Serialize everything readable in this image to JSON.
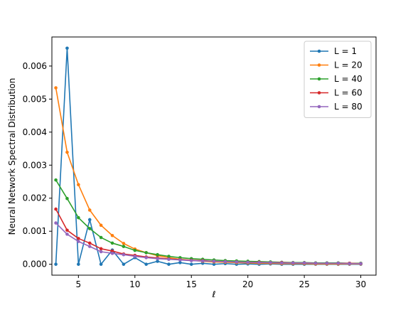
{
  "chart_data": {
    "type": "line",
    "title": "",
    "xlabel": "ℓ",
    "ylabel": "Neural Network Spectral Distribution",
    "xlim": [
      2.65,
      31.35
    ],
    "ylim": [
      -0.00033,
      0.00688
    ],
    "xticks": [
      5,
      10,
      15,
      20,
      25,
      30
    ],
    "xtick_labels": [
      "5",
      "10",
      "15",
      "20",
      "25",
      "30"
    ],
    "yticks": [
      0.0,
      0.001,
      0.002,
      0.003,
      0.004,
      0.005,
      0.006
    ],
    "ytick_labels": [
      "0.000",
      "0.001",
      "0.002",
      "0.003",
      "0.004",
      "0.005",
      "0.006"
    ],
    "grid": false,
    "legend": "top-right",
    "x": [
      3,
      4,
      5,
      6,
      7,
      8,
      9,
      10,
      11,
      12,
      13,
      14,
      15,
      16,
      17,
      18,
      19,
      20,
      21,
      22,
      23,
      24,
      25,
      26,
      27,
      28,
      29,
      30
    ],
    "series": [
      {
        "name": "L = 1",
        "color": "#1f77b4",
        "values": [
          0.0,
          0.00654,
          0.0,
          0.00135,
          0.0,
          0.00043,
          0.0,
          0.0002,
          0.0,
          9e-05,
          0.0,
          5e-05,
          0.0,
          3e-05,
          0.0,
          2e-05,
          0.0,
          1e-05,
          0.0,
          1e-05,
          0.0,
          0.0,
          0.0,
          0.0,
          0.0,
          0.0,
          0.0,
          0.0
        ]
      },
      {
        "name": "L = 20",
        "color": "#ff7f0e",
        "values": [
          0.00534,
          0.00339,
          0.00241,
          0.00164,
          0.00118,
          0.00087,
          0.00063,
          0.00046,
          0.00035,
          0.00026,
          0.0002,
          0.00015,
          0.00012,
          9e-05,
          7e-05,
          6e-05,
          5e-05,
          4e-05,
          3e-05,
          3e-05,
          2e-05,
          2e-05,
          2e-05,
          1e-05,
          1e-05,
          1e-05,
          1e-05,
          1e-05
        ]
      },
      {
        "name": "L = 40",
        "color": "#2ca02c",
        "values": [
          0.00255,
          0.00199,
          0.00141,
          0.00108,
          0.00081,
          0.00064,
          0.00054,
          0.00042,
          0.00035,
          0.00029,
          0.00024,
          0.0002,
          0.00017,
          0.00015,
          0.00013,
          0.00011,
          0.0001,
          9e-05,
          8e-05,
          7e-05,
          6e-05,
          5e-05,
          5e-05,
          4e-05,
          4e-05,
          4e-05,
          3e-05,
          3e-05
        ]
      },
      {
        "name": "L = 60",
        "color": "#d62728",
        "values": [
          0.00167,
          0.00103,
          0.00078,
          0.00064,
          0.00047,
          0.0004,
          0.00031,
          0.00027,
          0.00022,
          0.00019,
          0.00016,
          0.00014,
          0.00012,
          0.00011,
          9e-05,
          8e-05,
          7e-05,
          6e-05,
          6e-05,
          5e-05,
          5e-05,
          4e-05,
          4e-05,
          3e-05,
          3e-05,
          3e-05,
          3e-05,
          2e-05
        ]
      },
      {
        "name": "L = 80",
        "color": "#9467bd",
        "values": [
          0.00125,
          0.00091,
          0.00069,
          0.00054,
          0.00038,
          0.00033,
          0.00029,
          0.00024,
          0.0002,
          0.00017,
          0.00015,
          0.00013,
          0.00011,
          0.0001,
          9e-05,
          8e-05,
          7e-05,
          6e-05,
          5e-05,
          5e-05,
          4e-05,
          4e-05,
          4e-05,
          3e-05,
          3e-05,
          3e-05,
          2e-05,
          2e-05
        ]
      }
    ]
  }
}
